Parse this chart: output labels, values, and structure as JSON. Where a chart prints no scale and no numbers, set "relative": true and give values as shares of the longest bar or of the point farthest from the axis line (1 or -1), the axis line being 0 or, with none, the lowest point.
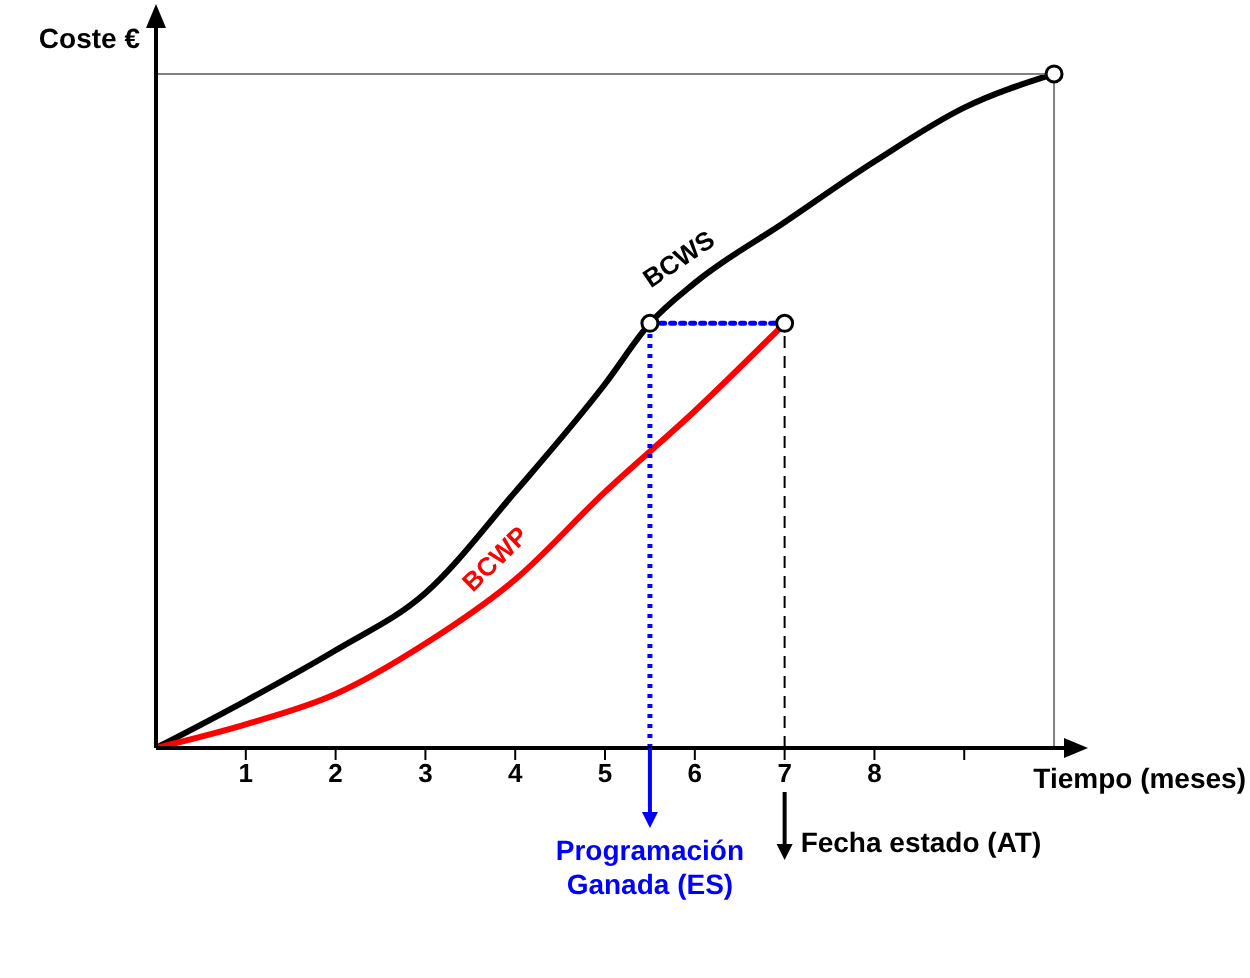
{
  "chart_data": {
    "type": "line",
    "relative": true,
    "xlabel": "Tiempo (meses)",
    "ylabel": "Coste €",
    "xlim": [
      0,
      10.2
    ],
    "xticks": [
      1,
      2,
      3,
      4,
      5,
      6,
      7,
      8,
      {
        "value": 9,
        "label": null
      }
    ],
    "tick_labels": "x",
    "series": [
      {
        "name": "BCWS",
        "color": "#000000",
        "line_style": "solid",
        "marker": "none",
        "x": [
          0,
          1,
          2,
          3,
          4,
          5,
          5.5,
          6,
          7,
          8,
          9,
          10
        ],
        "values": [
          0,
          0.07,
          0.145,
          0.23,
          0.38,
          0.54,
          0.63,
          0.69,
          0.78,
          0.87,
          0.95,
          1
        ]
      },
      {
        "name": "BCWP",
        "color": "#ff0000",
        "line_style": "solid",
        "marker": "none",
        "x": [
          0,
          1,
          2,
          3,
          4,
          5,
          6,
          7
        ],
        "values": [
          0,
          0.035,
          0.08,
          0.155,
          0.25,
          0.38,
          0.5,
          0.63
        ]
      },
      {
        "color": "#808080",
        "line_style": "solid",
        "marker": "none",
        "x": [
          0,
          10
        ],
        "values": [
          1,
          1
        ]
      },
      {
        "color": "#808080",
        "line_style": "solid",
        "marker": "none",
        "x": [
          10,
          10
        ],
        "values": [
          0,
          1
        ]
      },
      {
        "color": "#0000ff",
        "line_style": "dotted",
        "marker": "none",
        "x": [
          7,
          5.5
        ],
        "values": [
          0.63,
          0.63
        ]
      },
      {
        "type": "scatter",
        "color": "#000000",
        "marker": "circle",
        "x": [
          5.5,
          7,
          10
        ],
        "values": [
          0.63,
          0.63,
          1
        ]
      }
    ],
    "ref_lines": [
      {
        "axis": "x",
        "value": 5.5,
        "label": "Programación Ganada (ES)",
        "color": "#0000ff",
        "line_style": "dotted"
      },
      {
        "axis": "x",
        "value": 7,
        "label": "Fecha estado (AT)",
        "color": "#000000",
        "line_style": "dashed"
      }
    ]
  }
}
